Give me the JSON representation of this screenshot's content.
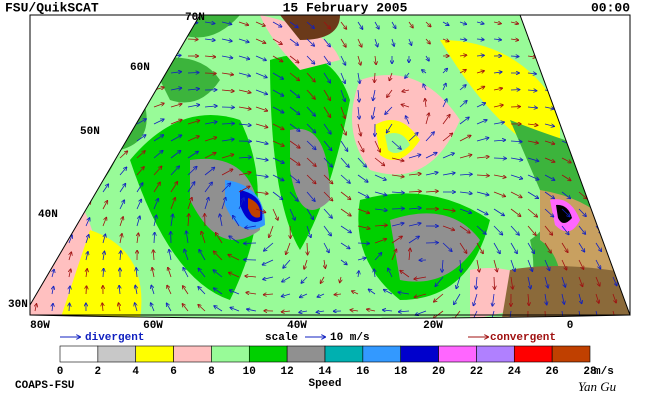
{
  "header": {
    "title": "FSU/QuikSCAT",
    "date": "15 February 2005",
    "time": "00:00"
  },
  "map": {
    "lat_labels": [
      "70N",
      "60N",
      "50N",
      "40N",
      "30N"
    ],
    "lon_labels": [
      "80W",
      "60W",
      "40W",
      "20W",
      "0"
    ]
  },
  "legend": {
    "divergent": "divergent",
    "scale": "scale",
    "scale_value": "10 m/s",
    "convergent": "convergent"
  },
  "colorbar": {
    "ticks": [
      0,
      2,
      4,
      6,
      8,
      10,
      12,
      14,
      16,
      18,
      20,
      22,
      24,
      26,
      28
    ],
    "unit": "m/s",
    "label": "Speed",
    "colors": [
      "#ffffff",
      "#c8c8c8",
      "#ffff00",
      "#ffc0c0",
      "#98fb98",
      "#00d000",
      "#909090",
      "#00b0b0",
      "#3399ff",
      "#0000cc",
      "#ff66ff",
      "#b080ff",
      "#ff0000",
      "#c04000",
      "#000000"
    ]
  },
  "footer": {
    "left": "COAPS-FSU",
    "right": "Yan Gu"
  }
}
